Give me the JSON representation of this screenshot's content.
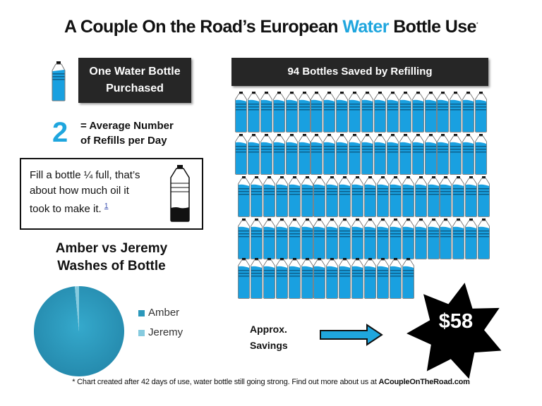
{
  "title": {
    "prefix": "A Couple On the Road’s European ",
    "accent": "Water",
    "suffix": " Bottle Use",
    "footnote_mark": "*"
  },
  "colors": {
    "accent_blue": "#1fa6de",
    "bottle_water": "#19a0e0",
    "dark_box": "#262626",
    "pie_amber": "#2b98bb",
    "pie_jeremy": "#86cbdf",
    "star": "#000000"
  },
  "purchased": {
    "icon": "water-bottle-icon",
    "line1": "One Water Bottle",
    "line2": "Purchased"
  },
  "refills": {
    "number": "2",
    "line1": "= Average Number",
    "line2": "of Refills per Day"
  },
  "oil_note": {
    "line1": "Fill a bottle ¼ full, that’s",
    "line2": "about how much oil it",
    "line3": "took to make it.",
    "footnote_link": "1",
    "icon": "oil-bottle-icon"
  },
  "saved": {
    "label": "94 Bottles Saved by Refilling",
    "count": 94,
    "rows": [
      20,
      20,
      20,
      20,
      14
    ]
  },
  "pie_title": {
    "line1": "Amber vs Jeremy",
    "line2": "Washes of Bottle"
  },
  "chart_data": {
    "type": "pie",
    "title": "Amber vs Jeremy Washes of Bottle",
    "categories": [
      "Amber",
      "Jeremy"
    ],
    "values": [
      98.5,
      1.5
    ],
    "legend_position": "right",
    "legend": [
      "Amber",
      "Jeremy"
    ]
  },
  "savings": {
    "line1": "Approx.",
    "line2": "Savings",
    "value": "$58"
  },
  "footer": {
    "text": "* Chart created after 42 days of use, water bottle still going strong. Find out more about us at ",
    "site": "ACoupleOnTheRoad.com"
  }
}
